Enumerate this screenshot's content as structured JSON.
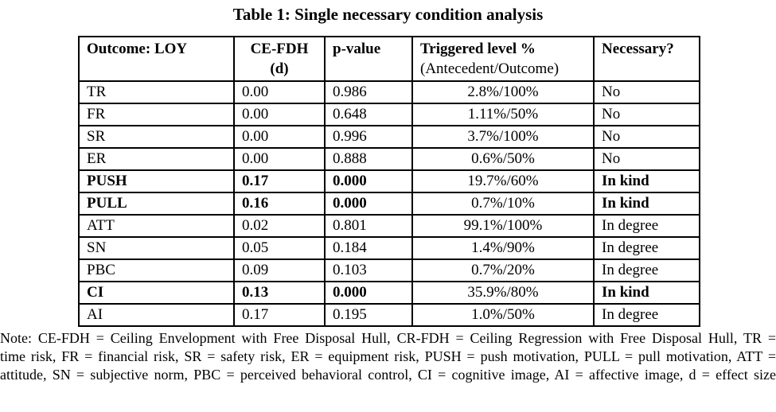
{
  "title": "Table 1: Single necessary condition analysis",
  "table": {
    "headers": {
      "outcome": "Outcome: LOY",
      "ce_fdh_line1": "CE-FDH",
      "ce_fdh_line2": "(d)",
      "p_value": "p-value",
      "triggered_line1": "Triggered level %",
      "triggered_line2": "(Antecedent/Outcome)",
      "necessary": "Necessary?"
    },
    "rows": [
      {
        "outcome": "TR",
        "d": "0.00",
        "p": "0.986",
        "triggered": "2.8%/100%",
        "necessary": "No"
      },
      {
        "outcome": "FR",
        "d": "0.00",
        "p": "0.648",
        "triggered": "1.11%/50%",
        "necessary": "No"
      },
      {
        "outcome": "SR",
        "d": "0.00",
        "p": "0.996",
        "triggered": "3.7%/100%",
        "necessary": "No"
      },
      {
        "outcome": "ER",
        "d": "0.00",
        "p": "0.888",
        "triggered": "0.6%/50%",
        "necessary": "No"
      },
      {
        "outcome": "PUSH",
        "d": "0.17",
        "p": "0.000",
        "triggered": "19.7%/60%",
        "necessary": "In kind"
      },
      {
        "outcome": "PULL",
        "d": "0.16",
        "p": "0.000",
        "triggered": "0.7%/10%",
        "necessary": "In kind"
      },
      {
        "outcome": "ATT",
        "d": "0.02",
        "p": "0.801",
        "triggered": "99.1%/100%",
        "necessary": "In degree"
      },
      {
        "outcome": "SN",
        "d": "0.05",
        "p": "0.184",
        "triggered": "1.4%/90%",
        "necessary": "In degree"
      },
      {
        "outcome": "PBC",
        "d": "0.09",
        "p": "0.103",
        "triggered": "0.7%/20%",
        "necessary": "In degree"
      },
      {
        "outcome": "CI",
        "d": "0.13",
        "p": "0.000",
        "triggered": "35.9%/80%",
        "necessary": "In kind"
      },
      {
        "outcome": "AI",
        "d": "0.17",
        "p": "0.195",
        "triggered": "1.0%/50%",
        "necessary": "In degree"
      }
    ]
  },
  "note": {
    "lines": [
      "Note: CE-FDH = Ceiling Envelopment with Free Disposal Hull, CR-FDH = Ceiling Regression with Free Disposal Hull, TR =",
      "time risk, FR = financial risk, SR = safety risk, ER = equipment risk, PUSH = push motivation, PULL = pull motivation, ATT =",
      "attitude, SN = subjective norm, PBC = perceived behavioral control, CI = cognitive image, AI = affective image, d = effect size"
    ]
  }
}
